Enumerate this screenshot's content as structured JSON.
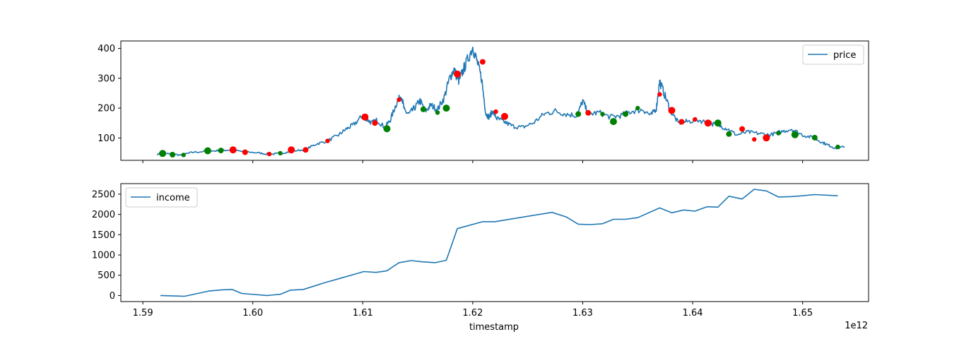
{
  "chart_data": [
    {
      "type": "line",
      "shared_x": true,
      "xlim": [
        1.588,
        1.656
      ],
      "ylim": [
        25,
        425
      ],
      "yticks": [
        "100",
        "200",
        "300",
        "400"
      ],
      "ytick_values": [
        100,
        200,
        300,
        400
      ],
      "series": [
        {
          "name": "price",
          "color": "#1f77b4",
          "x": [
            1.5913,
            1.5925,
            1.5935,
            1.5945,
            1.5958,
            1.597,
            1.598,
            1.599,
            1.6005,
            1.6015,
            1.6025,
            1.6035,
            1.6048,
            1.6058,
            1.6068,
            1.6078,
            1.6085,
            1.6092,
            1.61,
            1.6103,
            1.6108,
            1.6113,
            1.612,
            1.6125,
            1.613,
            1.6135,
            1.6138,
            1.6142,
            1.6147,
            1.6152,
            1.6157,
            1.6162,
            1.6168,
            1.6174,
            1.6179,
            1.6183,
            1.6187,
            1.619,
            1.6194,
            1.62,
            1.6204,
            1.6208,
            1.6212,
            1.6215,
            1.6218,
            1.6222,
            1.6228,
            1.6236,
            1.6245,
            1.6255,
            1.6265,
            1.6275,
            1.6285,
            1.6295,
            1.63,
            1.6305,
            1.6315,
            1.6325,
            1.6335,
            1.6345,
            1.6355,
            1.6362,
            1.6367,
            1.637,
            1.6375,
            1.638,
            1.6387,
            1.6395,
            1.6405,
            1.6415,
            1.6425,
            1.6432,
            1.644,
            1.645,
            1.646,
            1.647,
            1.648,
            1.649,
            1.65,
            1.651,
            1.6518,
            1.6524,
            1.653,
            1.6538
          ],
          "values": [
            45,
            47,
            42,
            52,
            55,
            58,
            60,
            55,
            50,
            45,
            48,
            55,
            62,
            80,
            90,
            110,
            130,
            145,
            175,
            165,
            150,
            160,
            135,
            160,
            210,
            245,
            190,
            180,
            200,
            225,
            190,
            210,
            195,
            235,
            300,
            330,
            290,
            315,
            350,
            405,
            355,
            300,
            180,
            170,
            190,
            165,
            155,
            140,
            135,
            150,
            180,
            190,
            180,
            175,
            225,
            180,
            185,
            170,
            175,
            190,
            195,
            175,
            200,
            290,
            240,
            190,
            150,
            155,
            160,
            150,
            140,
            130,
            110,
            120,
            115,
            110,
            120,
            130,
            110,
            100,
            85,
            75,
            65,
            70
          ],
          "buy_markers": {
            "color": "#008000",
            "x": [
              1.5918,
              1.5927,
              1.5937,
              1.5959,
              1.5971,
              1.6025,
              1.6122,
              1.6155,
              1.6168,
              1.6176,
              1.6296,
              1.6318,
              1.6328,
              1.6339,
              1.635,
              1.6423,
              1.6433,
              1.6478,
              1.6493,
              1.6511,
              1.6532
            ],
            "values": [
              48,
              44,
              43,
              57,
              58,
              49,
              131,
              196,
              185,
              200,
              180,
              180,
              155,
              180,
              200,
              150,
              113,
              116,
              111,
              101,
              70
            ]
          },
          "sell_markers": {
            "color": "#ff0000",
            "x": [
              1.5982,
              1.5993,
              1.6015,
              1.6035,
              1.6048,
              1.6068,
              1.6102,
              1.6111,
              1.6133,
              1.6186,
              1.6209,
              1.6221,
              1.6229,
              1.6305,
              1.637,
              1.6381,
              1.639,
              1.6402,
              1.6414,
              1.6445,
              1.6456,
              1.6467
            ],
            "values": [
              60,
              52,
              46,
              60,
              60,
              90,
              170,
              150,
              228,
              314,
              355,
              188,
              172,
              184,
              246,
              192,
              154,
              162,
              150,
              130,
              95,
              100
            ]
          }
        }
      ],
      "legend": "upper right"
    },
    {
      "type": "line",
      "shared_x": true,
      "xlim": [
        1.588,
        1.656
      ],
      "ylim": [
        -150,
        2760
      ],
      "xlabel": "timestamp",
      "x_offset_label": "1e12",
      "xticks": [
        "1.59",
        "1.60",
        "1.61",
        "1.62",
        "1.63",
        "1.64",
        "1.65"
      ],
      "xtick_values": [
        1.59,
        1.6,
        1.61,
        1.62,
        1.63,
        1.64,
        1.65
      ],
      "yticks": [
        "0",
        "500",
        "1000",
        "1500",
        "2000",
        "2500"
      ],
      "ytick_values": [
        0,
        500,
        1000,
        1500,
        2000,
        2500
      ],
      "series": [
        {
          "name": "income",
          "color": "#1f77b4",
          "x": [
            1.5916,
            1.5938,
            1.596,
            1.5972,
            1.5981,
            1.599,
            1.6013,
            1.6025,
            1.6034,
            1.6046,
            1.6066,
            1.6079,
            1.6101,
            1.6112,
            1.6122,
            1.6133,
            1.6144,
            1.6155,
            1.6166,
            1.6176,
            1.6186,
            1.6209,
            1.622,
            1.6272,
            1.6285,
            1.6296,
            1.6307,
            1.6318,
            1.6328,
            1.6339,
            1.635,
            1.637,
            1.6381,
            1.6392,
            1.6402,
            1.6413,
            1.6423,
            1.6433,
            1.6445,
            1.6456,
            1.6467,
            1.6478,
            1.6489,
            1.65,
            1.6511,
            1.6532
          ],
          "values": [
            0,
            -20,
            110,
            140,
            150,
            50,
            0,
            30,
            130,
            150,
            320,
            420,
            590,
            570,
            610,
            810,
            860,
            830,
            810,
            870,
            1650,
            1820,
            1820,
            2050,
            1940,
            1760,
            1750,
            1770,
            1880,
            1880,
            1920,
            2160,
            2040,
            2110,
            2080,
            2190,
            2180,
            2450,
            2380,
            2620,
            2580,
            2430,
            2440,
            2460,
            2490,
            2460
          ]
        }
      ],
      "legend": "upper left"
    }
  ]
}
